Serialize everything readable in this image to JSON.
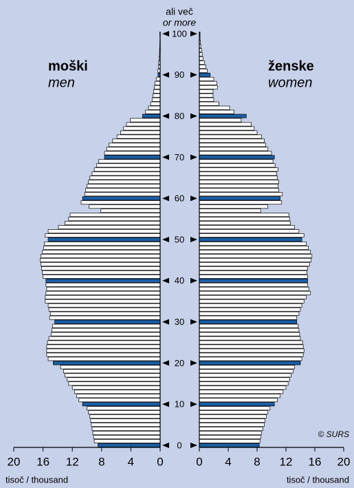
{
  "chart_data": {
    "type": "pyramid",
    "top_label": "ali več",
    "top_label_en": "or more",
    "left_title": "moški",
    "left_subtitle": "men",
    "right_title": "ženske",
    "right_subtitle": "women",
    "source": "© SURS",
    "x_label": "tisoč / thousand",
    "xlim": [
      0,
      20
    ],
    "xticks": [
      0,
      4,
      8,
      12,
      16,
      20
    ],
    "ylim": [
      -0.5,
      100.5
    ],
    "yticks": [
      0,
      10,
      20,
      30,
      40,
      50,
      60,
      70,
      80,
      90,
      100
    ],
    "background": "#c7d1e9",
    "highlight_color": "#1b5ea6",
    "y": [
      0,
      1,
      2,
      3,
      4,
      5,
      6,
      7,
      8,
      9,
      10,
      11,
      12,
      13,
      14,
      15,
      16,
      17,
      18,
      19,
      20,
      21,
      22,
      23,
      24,
      25,
      26,
      27,
      28,
      29,
      30,
      31,
      32,
      33,
      34,
      35,
      36,
      37,
      38,
      39,
      40,
      41,
      42,
      43,
      44,
      45,
      46,
      47,
      48,
      49,
      50,
      51,
      52,
      53,
      54,
      55,
      56,
      57,
      58,
      59,
      60,
      61,
      62,
      63,
      64,
      65,
      66,
      67,
      68,
      69,
      70,
      71,
      72,
      73,
      74,
      75,
      76,
      77,
      78,
      79,
      80,
      81,
      82,
      83,
      84,
      85,
      86,
      87,
      88,
      89,
      90,
      91,
      92,
      93,
      94,
      95,
      96,
      97,
      98,
      99,
      100
    ],
    "series": [
      {
        "name": "moški",
        "side": "left",
        "color": "#ffffff",
        "values": [
          8.5,
          9.0,
          9.1,
          9.2,
          9.3,
          9.4,
          9.5,
          9.6,
          9.8,
          10.0,
          10.6,
          11.1,
          11.4,
          11.7,
          12.0,
          12.5,
          12.7,
          13.0,
          13.2,
          13.6,
          14.6,
          15.3,
          15.5,
          15.5,
          15.5,
          15.4,
          15.2,
          14.9,
          14.8,
          14.7,
          14.4,
          15.1,
          15.0,
          15.2,
          15.3,
          15.7,
          15.7,
          15.6,
          15.5,
          15.6,
          15.6,
          16.0,
          16.1,
          16.2,
          16.3,
          16.4,
          16.3,
          16.1,
          15.9,
          15.8,
          15.3,
          15.7,
          15.3,
          13.9,
          13.0,
          12.5,
          12.3,
          8.1,
          9.7,
          10.8,
          10.6,
          10.3,
          10.2,
          10.0,
          9.8,
          9.6,
          9.3,
          9.0,
          8.7,
          8.4,
          7.6,
          7.6,
          7.3,
          7.0,
          6.5,
          5.9,
          5.4,
          5.0,
          4.6,
          4.1,
          2.4,
          2.0,
          1.6,
          1.3,
          1.1,
          1.0,
          0.9,
          0.8,
          0.7,
          0.5,
          0.3,
          0.3,
          0.25,
          0.2,
          0.15,
          0.1,
          0.08,
          0.06,
          0.04,
          0.03,
          0.05
        ]
      },
      {
        "name": "ženske",
        "side": "right",
        "color": "#ffffff",
        "values": [
          8.3,
          8.4,
          8.5,
          8.6,
          8.8,
          9.0,
          9.1,
          9.3,
          9.5,
          9.8,
          10.4,
          10.8,
          11.2,
          11.6,
          12.0,
          12.3,
          12.5,
          12.7,
          13.0,
          13.2,
          14.0,
          14.2,
          14.4,
          14.5,
          14.4,
          14.3,
          14.0,
          13.9,
          13.8,
          13.7,
          13.5,
          13.5,
          13.8,
          14.0,
          14.2,
          14.5,
          14.8,
          15.4,
          15.2,
          15.0,
          15.0,
          15.0,
          14.9,
          15.0,
          15.3,
          15.5,
          15.6,
          15.4,
          15.1,
          14.8,
          14.2,
          14.5,
          13.8,
          13.2,
          12.6,
          12.5,
          12.4,
          8.5,
          9.5,
          11.4,
          11.2,
          11.5,
          11.0,
          10.9,
          11.0,
          10.8,
          10.7,
          10.9,
          10.5,
          10.2,
          10.4,
          10.0,
          9.5,
          9.2,
          9.0,
          8.6,
          8.0,
          7.6,
          7.2,
          5.8,
          6.5,
          4.8,
          4.2,
          2.7,
          2.0,
          1.9,
          1.9,
          2.5,
          2.4,
          2.0,
          1.5,
          1.1,
          0.9,
          0.7,
          0.5,
          0.4,
          0.3,
          0.2,
          0.15,
          0.1,
          0.1
        ]
      }
    ]
  }
}
